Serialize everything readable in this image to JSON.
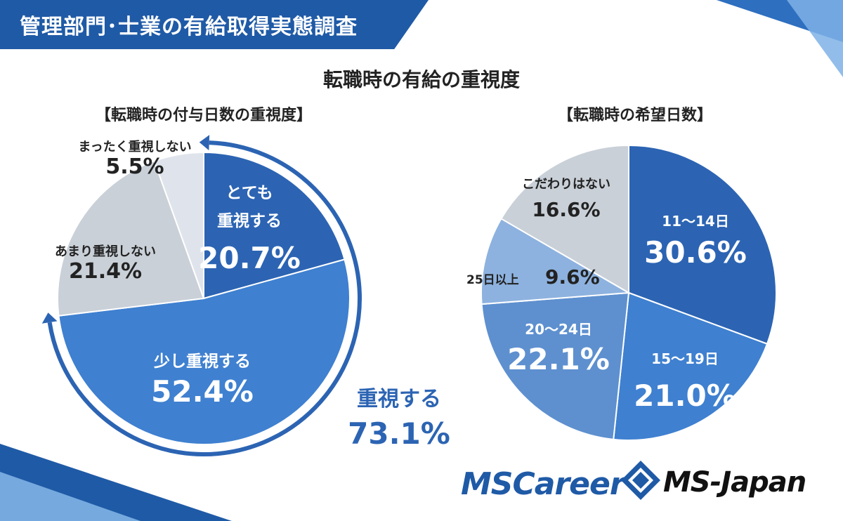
{
  "header": {
    "banner_title": "管理部門･士業の有給取得実態調査",
    "main_title": "転職時の有給の重視度"
  },
  "colors": {
    "banner": "#1f5aa6",
    "dark_blue": "#2c64b3",
    "mid_blue": "#3f80d0",
    "light_blue": "#8db2df",
    "steel_blue": "#5e90cf",
    "gray": "#c9d0d8",
    "pale_gray": "#dfe4ec",
    "arrow": "#2c64b3"
  },
  "chart_data": [
    {
      "type": "pie",
      "title": "【転職時の付与日数の重視度】",
      "slices": [
        {
          "label_lines": [
            "とても",
            "重視する"
          ],
          "value": 20.7,
          "value_text": "20.7%",
          "color": "#2c64b3"
        },
        {
          "label_lines": [
            "少し重視する"
          ],
          "value": 52.4,
          "value_text": "52.4%",
          "color": "#3f80d0"
        },
        {
          "label_lines": [
            "あまり重視しない"
          ],
          "value": 21.4,
          "value_text": "21.4%",
          "color": "#c9d0d8"
        },
        {
          "label_lines": [
            "まったく重視しない"
          ],
          "value": 5.5,
          "value_text": "5.5%",
          "color": "#dfe4ec"
        }
      ],
      "annotation": {
        "label": "重視する",
        "value_text": "73.1%"
      }
    },
    {
      "type": "pie",
      "title": "【転職時の希望日数】",
      "slices": [
        {
          "label_lines": [
            "11～14日"
          ],
          "value": 30.6,
          "value_text": "30.6%",
          "color": "#2c64b3"
        },
        {
          "label_lines": [
            "15～19日"
          ],
          "value": 21.0,
          "value_text": "21.0%",
          "color": "#3f80d0"
        },
        {
          "label_lines": [
            "20～24日"
          ],
          "value": 22.1,
          "value_text": "22.1%",
          "color": "#5e90cf"
        },
        {
          "label_lines": [
            "25日以上"
          ],
          "value": 9.6,
          "value_text": "9.6%",
          "color": "#8db2df"
        },
        {
          "label_lines": [
            "こだわりはない"
          ],
          "value": 16.6,
          "value_text": "16.6%",
          "color": "#c9d0d8"
        }
      ]
    }
  ],
  "logos": {
    "ms_career": "MSCareer",
    "ms_japan": "MS-Japan"
  }
}
